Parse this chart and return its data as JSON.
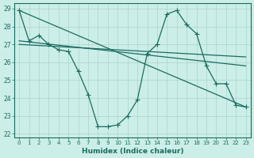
{
  "xlabel": "Humidex (Indice chaleur)",
  "background_color": "#cceee8",
  "grid_color": "#aad4cc",
  "line_color": "#1a6b60",
  "xlim": [
    -0.5,
    23.5
  ],
  "ylim": [
    21.8,
    29.3
  ],
  "yticks": [
    22,
    23,
    24,
    25,
    26,
    27,
    28,
    29
  ],
  "xticks": [
    0,
    1,
    2,
    3,
    4,
    5,
    6,
    7,
    8,
    9,
    10,
    11,
    12,
    13,
    14,
    15,
    16,
    17,
    18,
    19,
    20,
    21,
    22,
    23
  ],
  "series_main_x": [
    0,
    1,
    2,
    3,
    4,
    5,
    6,
    7,
    8,
    9,
    10,
    11,
    12,
    13,
    14,
    15,
    16,
    17,
    18,
    19,
    20,
    21,
    22,
    23
  ],
  "series_main_y": [
    28.9,
    27.2,
    27.5,
    27.0,
    26.7,
    26.6,
    25.5,
    24.2,
    22.4,
    22.4,
    22.5,
    23.0,
    23.9,
    26.5,
    27.0,
    28.7,
    28.9,
    28.1,
    27.6,
    25.8,
    24.8,
    24.8,
    23.6,
    23.5
  ],
  "series_line1_x": [
    0,
    23
  ],
  "series_line1_y": [
    28.9,
    23.5
  ],
  "series_line2_x": [
    0,
    23
  ],
  "series_line2_y": [
    27.2,
    25.8
  ],
  "series_line3_x": [
    0,
    23
  ],
  "series_line3_y": [
    27.0,
    26.3
  ]
}
